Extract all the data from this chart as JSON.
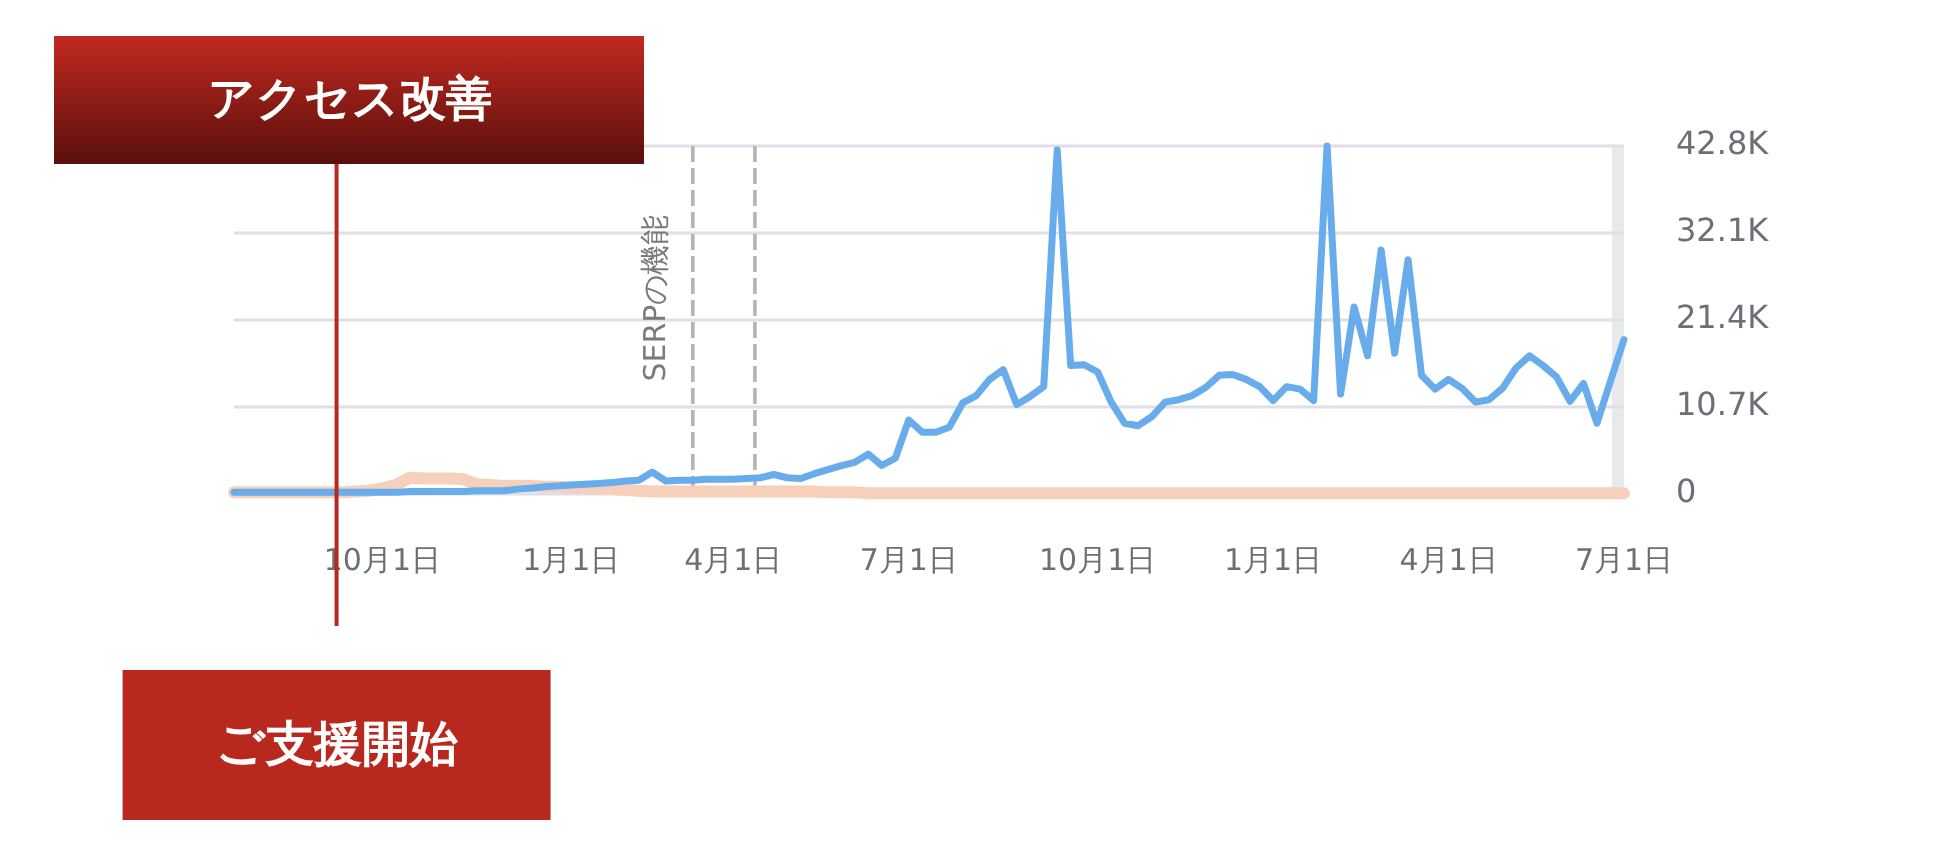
{
  "chart_data": {
    "type": "line",
    "title": "アクセス改善",
    "categories": [
      null,
      null,
      null,
      null,
      null,
      null,
      null,
      null,
      null,
      null,
      null,
      "10月1日",
      null,
      null,
      null,
      null,
      null,
      null,
      null,
      null,
      null,
      null,
      null,
      null,
      null,
      "1月1日",
      null,
      null,
      null,
      null,
      null,
      null,
      null,
      null,
      null,
      null,
      null,
      "4月1日",
      null,
      null,
      null,
      null,
      null,
      null,
      null,
      null,
      null,
      null,
      null,
      null,
      "7月1日",
      null,
      null,
      null,
      null,
      null,
      null,
      null,
      null,
      null,
      null,
      null,
      null,
      null,
      "10月1日",
      null,
      null,
      null,
      null,
      null,
      null,
      null,
      null,
      null,
      null,
      null,
      null,
      "1月1日",
      null,
      null,
      null,
      null,
      null,
      null,
      null,
      null,
      null,
      null,
      null,
      null,
      "4月1日",
      null,
      null,
      null,
      null,
      null,
      null,
      null,
      null,
      null,
      null,
      null,
      null,
      "7月1日"
    ],
    "ylim": [
      0,
      42800
    ],
    "yticks": [
      {
        "value": 0,
        "label": "0"
      },
      {
        "value": 10700,
        "label": "10.7K"
      },
      {
        "value": 21400,
        "label": "21.4K"
      },
      {
        "value": 32100,
        "label": "32.1K"
      },
      {
        "value": 42800,
        "label": "42.8K"
      }
    ],
    "grid": "y",
    "series": [
      {
        "color": "#68acec",
        "values": [
          200,
          200,
          200,
          200,
          200,
          200,
          200,
          200,
          200,
          200,
          200,
          200,
          200,
          300,
          300,
          300,
          300,
          300,
          400,
          400,
          400,
          600,
          700,
          900,
          1000,
          1100,
          1200,
          1300,
          1400,
          1600,
          1700,
          2700,
          1600,
          1700,
          1700,
          1800,
          1800,
          1800,
          1900,
          2000,
          2400,
          2000,
          1900,
          2500,
          3000,
          3500,
          3900,
          4900,
          3500,
          4400,
          9100,
          7600,
          7600,
          8200,
          11200,
          12100,
          14100,
          15300,
          11000,
          12000,
          13200,
          42300,
          15800,
          15900,
          15000,
          11300,
          8700,
          8400,
          9500,
          11300,
          11600,
          12100,
          13100,
          14600,
          14700,
          14100,
          13200,
          11500,
          13200,
          12900,
          11500,
          42800,
          12300,
          23000,
          17000,
          30000,
          17300,
          28800,
          14600,
          12900,
          14100,
          13000,
          11300,
          11600,
          13000,
          15500,
          17000,
          15800,
          14400,
          11400,
          13600,
          8700,
          13900,
          19000
        ]
      },
      {
        "color": "#f6d0ba",
        "values": [
          200,
          200,
          200,
          200,
          200,
          200,
          200,
          200,
          200,
          300,
          400,
          700,
          1100,
          2000,
          1900,
          1900,
          1900,
          1800,
          1200,
          1100,
          1000,
          1000,
          1000,
          900,
          900,
          800,
          800,
          700,
          600,
          500,
          400,
          300,
          300,
          300,
          300,
          300,
          300,
          300,
          300,
          300,
          300,
          300,
          300,
          300,
          200,
          200,
          200,
          100,
          100,
          100,
          100,
          100,
          100,
          100,
          100,
          100,
          100,
          100,
          100,
          100,
          100,
          100,
          100,
          100,
          100,
          100,
          100,
          100,
          100,
          100,
          100,
          100,
          100,
          100,
          100,
          100,
          100,
          100,
          100,
          100,
          100,
          100,
          100,
          100,
          100,
          100,
          100,
          100,
          100,
          100,
          100,
          100,
          100,
          100,
          100,
          100,
          100,
          100,
          100,
          100,
          100,
          100,
          100,
          100
        ]
      }
    ],
    "annotations": [
      "ご支援開始",
      "SERPの機能"
    ]
  }
}
